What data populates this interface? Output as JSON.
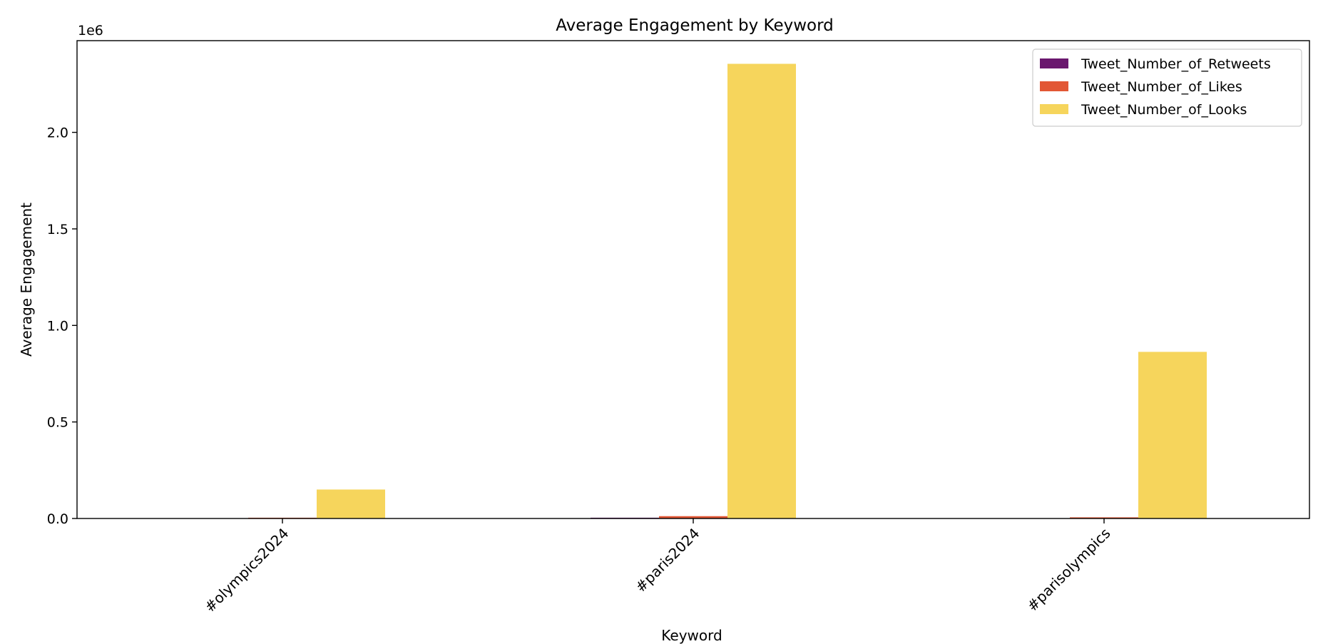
{
  "chart_data": {
    "type": "bar",
    "title": "Average Engagement by Keyword",
    "xlabel": "Keyword",
    "ylabel": "Average Engagement",
    "offset_label": "1e6",
    "categories": [
      "#olympics2024",
      "#paris2024",
      "#parisolympics"
    ],
    "series": [
      {
        "name": "Tweet_Number_of_Retweets",
        "color": "#6a176e",
        "values": [
          800,
          4000,
          1500
        ]
      },
      {
        "name": "Tweet_Number_of_Likes",
        "color": "#e25735",
        "values": [
          4000,
          12000,
          6000
        ]
      },
      {
        "name": "Tweet_Number_of_Looks",
        "color": "#f6d55c",
        "values": [
          150000,
          2355000,
          863000
        ]
      }
    ],
    "ylim": [
      0,
      2475000
    ],
    "yticks": [
      0,
      500000,
      1000000,
      1500000,
      2000000
    ],
    "ytick_labels": [
      "0.0",
      "0.5",
      "1.0",
      "1.5",
      "2.0"
    ],
    "legend_position": "top-right",
    "grid": false
  }
}
